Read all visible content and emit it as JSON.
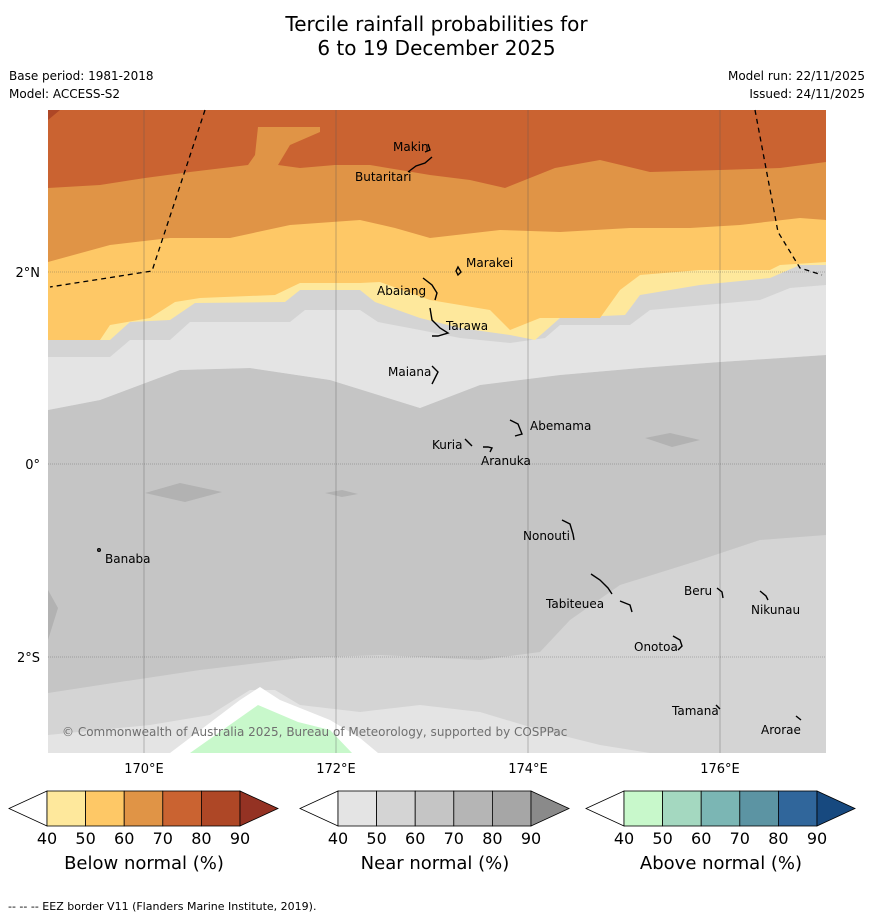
{
  "title": {
    "line1": "Tercile rainfall probabilities for",
    "line2": "6 to 19 December 2025"
  },
  "meta": {
    "base_period": "Base period: 1981-2018",
    "model": "Model: ACCESS-S2",
    "model_run": "Model run: 22/11/2025",
    "issued": "Issued: 24/11/2025"
  },
  "map": {
    "lon_labels": [
      "170°E",
      "172°E",
      "174°E",
      "176°E"
    ],
    "lat_labels": [
      "2°N",
      "0°",
      "2°S"
    ],
    "islands": [
      "Makin",
      "Butaritari",
      "Marakei",
      "Abaiang",
      "Tarawa",
      "Maiana",
      "Abemama",
      "Kuria",
      "Aranuka",
      "Banaba",
      "Nonouti",
      "Beru",
      "Tabiteuea",
      "Nikunau",
      "Onotoa",
      "Tamana",
      "Arorae"
    ],
    "copyright": "© Commonwealth of Australia 2025, Bureau of Meteorology, supported by COSPPac"
  },
  "legend": {
    "ticks": [
      "40",
      "50",
      "60",
      "70",
      "80",
      "90"
    ],
    "below": {
      "title": "Below normal (%)",
      "colors": [
        "#ffffff",
        "#fee89c",
        "#fec866",
        "#e09446",
        "#ca6331",
        "#ae4726",
        "#943223"
      ]
    },
    "near": {
      "title": "Near normal (%)",
      "colors": [
        "#ffffff",
        "#e4e4e4",
        "#d4d4d4",
        "#c5c5c5",
        "#b5b5b5",
        "#a6a6a6",
        "#8a8a8a"
      ]
    },
    "above": {
      "title": "Above normal (%)",
      "colors": [
        "#ffffff",
        "#c8f8cb",
        "#a4d8c0",
        "#7bb6b4",
        "#5c94a3",
        "#30669b",
        "#17497f"
      ]
    }
  },
  "footer": "--  --  -- EEZ border V11 (Flanders Marine Institute, 2019)."
}
